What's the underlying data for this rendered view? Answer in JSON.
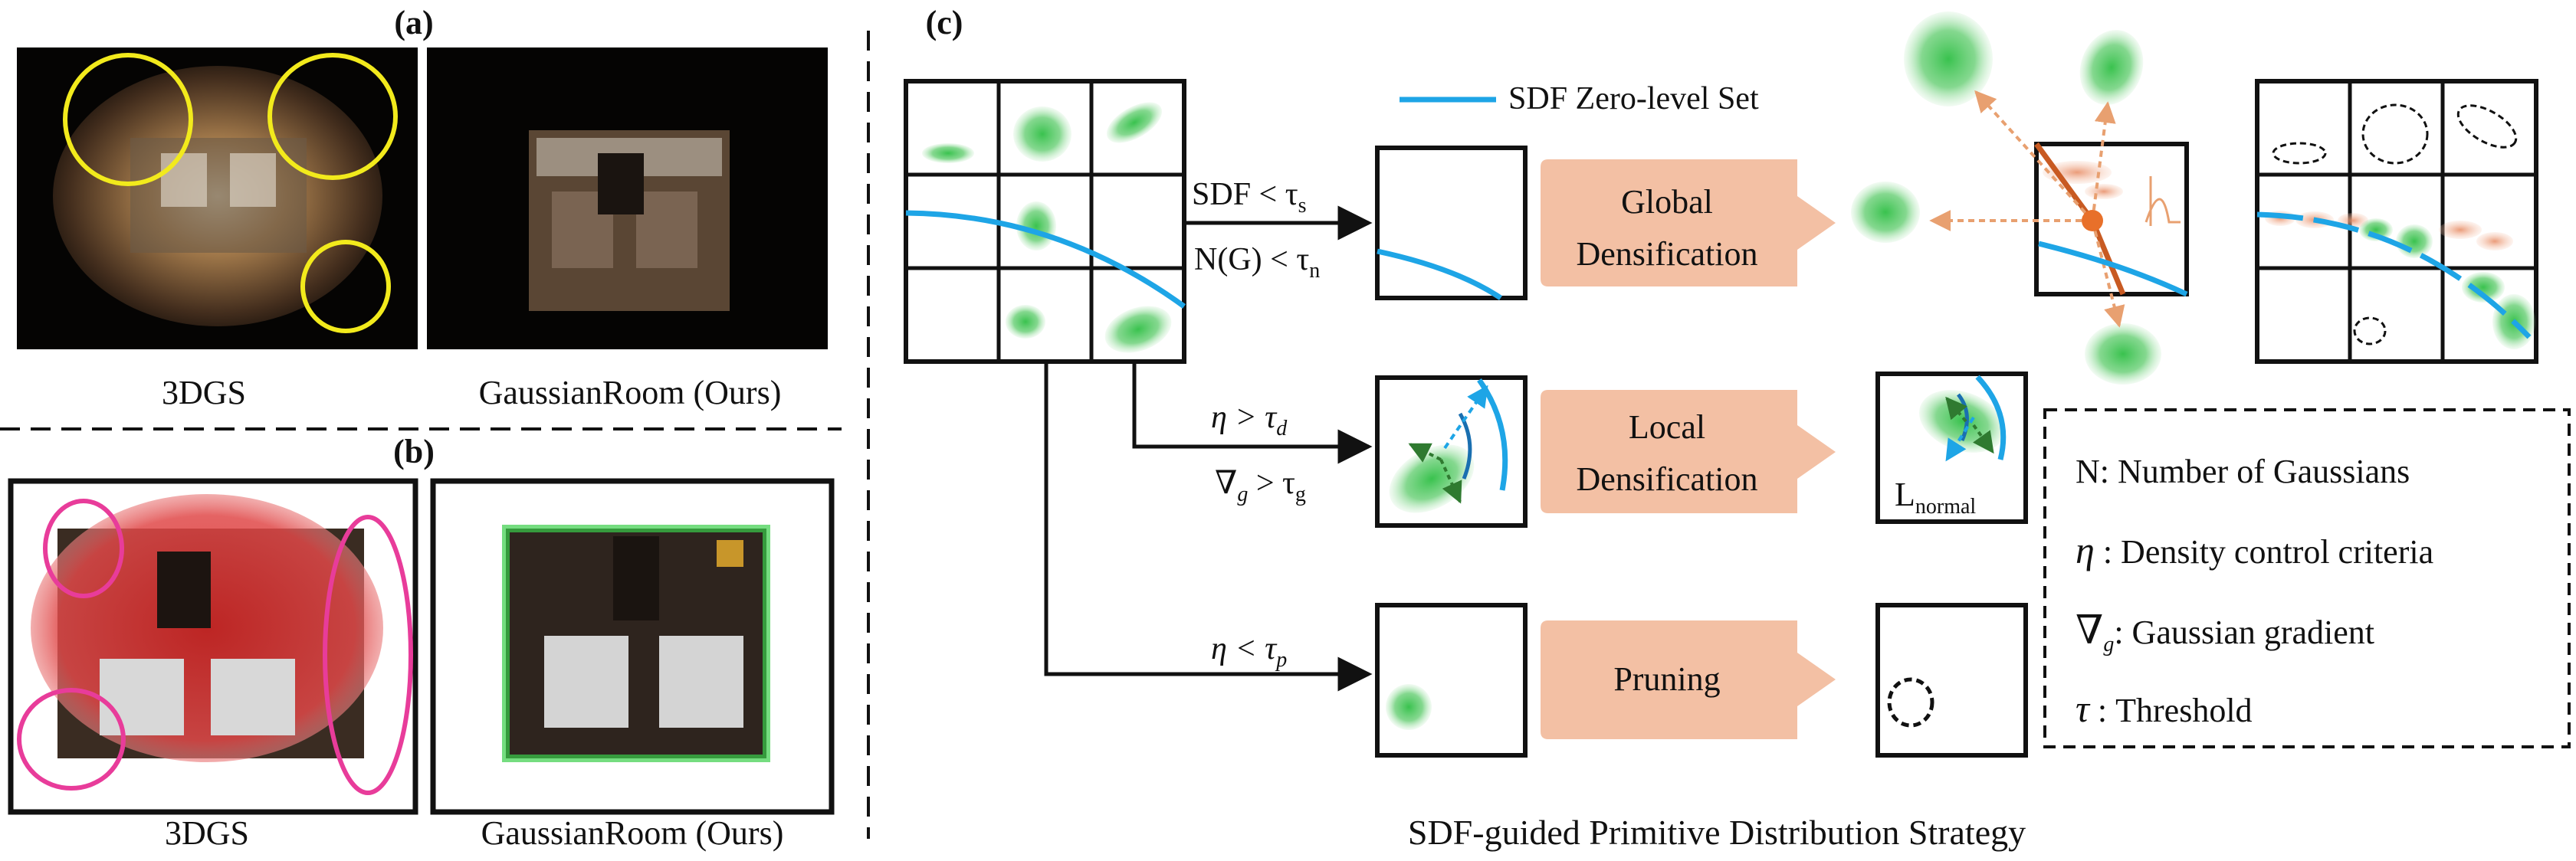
{
  "panel_a": {
    "label": "(a)",
    "left_caption": "3DGS",
    "right_caption": "GaussianRoom (Ours)"
  },
  "panel_b": {
    "label": "(b)",
    "left_caption": "3DGS",
    "right_caption": "GaussianRoom (Ours)"
  },
  "panel_c": {
    "label": "(c)",
    "legend_sdf": "SDF Zero-level  Set",
    "cond_global_1": "SDF < τ",
    "cond_global_1_sub": "s",
    "cond_global_2": "N(G) < τ",
    "cond_global_2_sub": "n",
    "cond_local_1": "η > τ",
    "cond_local_1_sub": "d",
    "cond_local_2": "∇",
    "cond_local_2_g": "g",
    "cond_local_2_rest": " > τ",
    "cond_local_2_sub": "g",
    "cond_prune": "η < τ",
    "cond_prune_sub": "p",
    "global_label_1": "Global",
    "global_label_2": "Densification",
    "local_label_1": "Local",
    "local_label_2": "Densification",
    "pruning_label": "Pruning",
    "lnormal": "L",
    "lnormal_sub": "normal",
    "caption": "SDF-guided Primitive Distribution Strategy"
  },
  "legend": {
    "n_sym": "N",
    "n_text": ": Number of Gaussians",
    "eta_sym": "η",
    "eta_text": " : Density control criteria",
    "grad_sym": "∇",
    "grad_sub": "g",
    "grad_text": ": Gaussian gradient",
    "tau_sym": "τ",
    "tau_text": " : Threshold"
  },
  "colors": {
    "sdf_line": "#1ea5e6",
    "gaussian": "#54c862",
    "block": "#f3c0a4",
    "ellipse_yellow": "#f2ea1c",
    "ellipse_pink": "#e83c9a",
    "arrow_orange": "#c85a22"
  }
}
